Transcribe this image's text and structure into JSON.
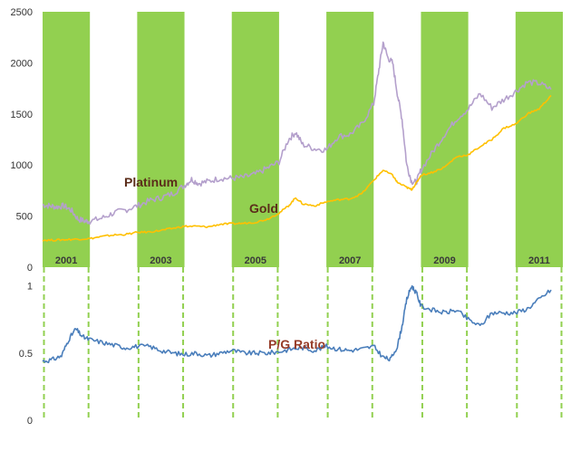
{
  "colors": {
    "band": "#92d050",
    "dash": "#92d050",
    "platinum": "#b4a0cc",
    "gold": "#ffc000",
    "ratio": "#4a7ebb",
    "label_dark": "#5b2c1a",
    "label_ratio": "#963c28"
  },
  "chart_data": [
    {
      "type": "line",
      "title": "",
      "xlabel": "",
      "ylabel": "",
      "xlim": [
        2001.0,
        2012.0
      ],
      "ylim": [
        0,
        2500
      ],
      "yticks": [
        "0",
        "500",
        "1000",
        "1500",
        "2000",
        "2500"
      ],
      "year_labels": [
        "2001",
        "2003",
        "2005",
        "2007",
        "2009",
        "2011"
      ],
      "shaded_years": [
        {
          "label": "2001",
          "start": 2001.0,
          "end": 2002.0
        },
        {
          "label": "2003",
          "start": 2003.0,
          "end": 2004.0
        },
        {
          "label": "2005",
          "start": 2005.0,
          "end": 2006.0
        },
        {
          "label": "2007",
          "start": 2007.0,
          "end": 2008.0
        },
        {
          "label": "2009",
          "start": 2009.0,
          "end": 2010.0
        },
        {
          "label": "2011",
          "start": 2011.0,
          "end": 2012.0
        }
      ],
      "series": [
        {
          "name": "Platinum",
          "x": [
            2001.0,
            2001.15,
            2001.3,
            2001.45,
            2001.6,
            2001.75,
            2001.9,
            2002.0,
            2002.25,
            2002.5,
            2002.75,
            2003.0,
            2003.25,
            2003.5,
            2003.75,
            2004.0,
            2004.15,
            2004.3,
            2004.5,
            2004.75,
            2005.0,
            2005.25,
            2005.5,
            2005.75,
            2006.0,
            2006.2,
            2006.35,
            2006.5,
            2006.75,
            2007.0,
            2007.25,
            2007.5,
            2007.75,
            2008.0,
            2008.1,
            2008.2,
            2008.3,
            2008.4,
            2008.5,
            2008.6,
            2008.7,
            2008.8,
            2008.9,
            2009.0,
            2009.25,
            2009.5,
            2009.75,
            2010.0,
            2010.25,
            2010.5,
            2010.75,
            2011.0,
            2011.25,
            2011.5,
            2011.75
          ],
          "values": [
            610,
            600,
            590,
            600,
            560,
            470,
            450,
            450,
            480,
            530,
            560,
            600,
            650,
            680,
            720,
            800,
            860,
            820,
            840,
            870,
            870,
            880,
            910,
            970,
            1030,
            1250,
            1320,
            1200,
            1160,
            1150,
            1280,
            1300,
            1400,
            1600,
            1900,
            2200,
            2050,
            2000,
            1700,
            1450,
            1000,
            840,
            830,
            950,
            1130,
            1300,
            1450,
            1550,
            1700,
            1560,
            1640,
            1720,
            1810,
            1800,
            1740
          ]
        },
        {
          "name": "Gold",
          "x": [
            2001.0,
            2001.25,
            2001.5,
            2001.75,
            2002.0,
            2002.25,
            2002.5,
            2002.75,
            2003.0,
            2003.25,
            2003.5,
            2003.75,
            2004.0,
            2004.25,
            2004.5,
            2004.75,
            2005.0,
            2005.25,
            2005.5,
            2005.75,
            2006.0,
            2006.2,
            2006.35,
            2006.5,
            2006.75,
            2007.0,
            2007.25,
            2007.5,
            2007.75,
            2008.0,
            2008.2,
            2008.4,
            2008.5,
            2008.7,
            2008.8,
            2008.9,
            2009.0,
            2009.25,
            2009.5,
            2009.75,
            2010.0,
            2010.25,
            2010.5,
            2010.75,
            2011.0,
            2011.25,
            2011.5,
            2011.75
          ],
          "values": [
            265,
            265,
            270,
            275,
            280,
            300,
            315,
            320,
            340,
            345,
            360,
            380,
            400,
            400,
            395,
            420,
            425,
            430,
            440,
            470,
            530,
            600,
            680,
            620,
            600,
            640,
            660,
            670,
            720,
            850,
            950,
            900,
            830,
            780,
            760,
            820,
            900,
            930,
            980,
            1080,
            1100,
            1180,
            1250,
            1360,
            1400,
            1500,
            1550,
            1680
          ]
        }
      ]
    },
    {
      "type": "line",
      "title": "",
      "xlabel": "",
      "ylabel": "",
      "xlim": [
        2001.0,
        2012.0
      ],
      "ylim": [
        0,
        1.2
      ],
      "yticks": [
        "0",
        "0.5",
        "1"
      ],
      "series": [
        {
          "name": "P/G Ratio",
          "x": [
            2001.0,
            2001.2,
            2001.4,
            2001.55,
            2001.7,
            2001.85,
            2002.0,
            2002.25,
            2002.5,
            2002.75,
            2003.0,
            2003.25,
            2003.5,
            2003.75,
            2004.0,
            2004.25,
            2004.5,
            2004.75,
            2005.0,
            2005.25,
            2005.5,
            2005.75,
            2006.0,
            2006.25,
            2006.5,
            2006.75,
            2007.0,
            2007.25,
            2007.5,
            2007.75,
            2008.0,
            2008.2,
            2008.35,
            2008.5,
            2008.6,
            2008.7,
            2008.8,
            2008.9,
            2009.0,
            2009.25,
            2009.5,
            2009.75,
            2010.0,
            2010.25,
            2010.5,
            2010.75,
            2011.0,
            2011.25,
            2011.5,
            2011.75
          ],
          "values": [
            0.44,
            0.45,
            0.48,
            0.6,
            0.68,
            0.62,
            0.6,
            0.58,
            0.56,
            0.54,
            0.55,
            0.55,
            0.52,
            0.5,
            0.49,
            0.5,
            0.48,
            0.5,
            0.52,
            0.5,
            0.5,
            0.5,
            0.51,
            0.53,
            0.54,
            0.52,
            0.55,
            0.53,
            0.52,
            0.53,
            0.55,
            0.47,
            0.45,
            0.55,
            0.7,
            0.9,
            1.0,
            0.95,
            0.85,
            0.82,
            0.8,
            0.82,
            0.75,
            0.7,
            0.8,
            0.8,
            0.8,
            0.83,
            0.9,
            0.97
          ]
        }
      ]
    }
  ],
  "labels": {
    "platinum": "Platinum",
    "gold": "Gold",
    "ratio": "P/G Ratio"
  }
}
